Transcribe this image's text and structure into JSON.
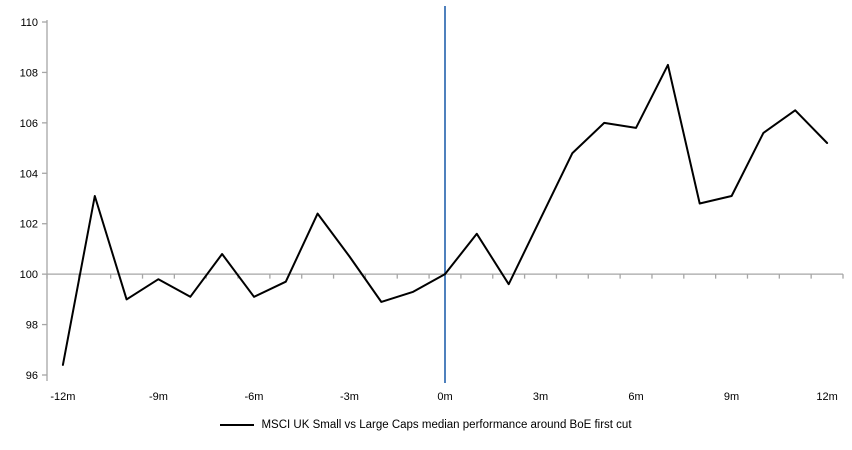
{
  "chart_data": {
    "type": "line",
    "title": "",
    "xlabel": "",
    "ylabel": "",
    "x": [
      -12,
      -11,
      -10,
      -9,
      -8,
      -7,
      -6,
      -5,
      -4,
      -3,
      -2,
      -1,
      0,
      1,
      2,
      3,
      4,
      5,
      6,
      7,
      8,
      9,
      10,
      11,
      12
    ],
    "series": [
      {
        "name": "MSCI UK Small vs Large Caps median performance around BoE first cut",
        "color": "#000000",
        "values": [
          96.4,
          103.1,
          99.0,
          99.8,
          99.1,
          100.8,
          99.1,
          99.7,
          102.4,
          100.7,
          98.9,
          99.3,
          100.0,
          101.6,
          99.6,
          102.2,
          104.8,
          106.0,
          105.8,
          108.3,
          102.8,
          103.1,
          105.6,
          106.5,
          105.2
        ]
      }
    ],
    "xlim": [
      -12.5,
      12.5
    ],
    "ylim": [
      96,
      110
    ],
    "x_tick_values": [
      -12,
      -9,
      -6,
      -3,
      0,
      3,
      6,
      9,
      12
    ],
    "x_tick_labels": [
      "-12m",
      "-9m",
      "-6m",
      "-3m",
      "0m",
      "3m",
      "6m",
      "9m",
      "12m"
    ],
    "y_tick_values": [
      96,
      98,
      100,
      102,
      104,
      106,
      108,
      110
    ],
    "y_tick_labels": [
      "96",
      "98",
      "100",
      "102",
      "104",
      "106",
      "108",
      "110"
    ],
    "grid": false,
    "baseline": {
      "value": 100,
      "color": "#a6a6a6"
    },
    "event_line": {
      "x": 0,
      "color": "#4f81bd"
    },
    "axis_color": "#a6a6a6",
    "tick_label_color": "#000000",
    "legend_position": "bottom-center"
  },
  "legend": {
    "label": "MSCI UK Small vs Large Caps median performance around BoE first cut"
  }
}
